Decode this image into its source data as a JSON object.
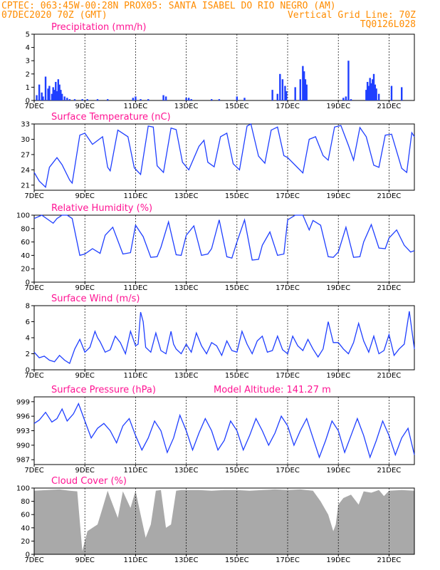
{
  "header": {
    "line1_left": "CPTEC:   063:45W-00:28N   PROX05: SANTA ISABEL DO RIO NEGRO (AM)",
    "line2_left": "07DEC2020 70Z (GMT)",
    "line2_right": "Vertical Grid Line: 70Z",
    "line3_right": "TQ0126L028"
  },
  "x_axis": {
    "start_day": 7,
    "end_day": 22,
    "ticks": [
      "7DEC",
      "9DEC",
      "11DEC",
      "13DEC",
      "15DEC",
      "17DEC",
      "19DEC",
      "21DEC"
    ]
  },
  "colors": {
    "line": "#1f3fff",
    "bar": "#1f3fff",
    "cloud": "#a9a9a9",
    "title": "#ff1493",
    "header": "#ff8c00"
  },
  "chart_data": [
    {
      "id": "precip",
      "type": "bar",
      "title": "Precipitation (mm/h)",
      "ylim": [
        0,
        5
      ],
      "yticks": [
        0,
        1,
        2,
        3,
        4,
        5
      ],
      "grid": true,
      "x": [
        7.1,
        7.2,
        7.3,
        7.35,
        7.45,
        7.55,
        7.6,
        7.7,
        7.75,
        7.8,
        7.85,
        7.9,
        7.95,
        8.0,
        8.05,
        8.1,
        8.2,
        8.3,
        8.4,
        8.6,
        8.9,
        9.1,
        9.5,
        9.9,
        10.9,
        11.0,
        11.2,
        11.5,
        12.1,
        12.2,
        13.0,
        13.1,
        13.2,
        14.0,
        14.3,
        15.0,
        15.3,
        16.4,
        16.6,
        16.7,
        16.8,
        16.9,
        16.95,
        17.3,
        17.5,
        17.6,
        17.65,
        17.7,
        17.75,
        19.2,
        19.3,
        19.4,
        19.5,
        20.1,
        20.15,
        20.2,
        20.25,
        20.3,
        20.35,
        20.4,
        20.45,
        20.5,
        20.6,
        21.1,
        21.5
      ],
      "values": [
        0.4,
        1.2,
        0.6,
        0.3,
        1.8,
        0.9,
        1.1,
        0.5,
        1.0,
        0.8,
        1.4,
        0.7,
        1.6,
        1.2,
        0.8,
        0.5,
        0.3,
        0.2,
        0.1,
        0.1,
        0.1,
        0.1,
        0.1,
        0.1,
        0.2,
        0.3,
        0.1,
        0.1,
        0.4,
        0.3,
        0.2,
        0.2,
        0.1,
        0.1,
        0.1,
        0.3,
        0.2,
        0.8,
        0.5,
        2.0,
        1.6,
        1.1,
        0.7,
        1.0,
        1.6,
        2.6,
        2.2,
        1.6,
        1.2,
        0.2,
        0.3,
        3.0,
        0.1,
        0.8,
        1.4,
        1.1,
        1.7,
        1.3,
        1.6,
        2.0,
        1.2,
        0.9,
        0.5,
        1.1,
        1.0
      ]
    },
    {
      "id": "temp",
      "type": "line",
      "title": "Surface Temperature (nC)",
      "ylim": [
        20,
        33
      ],
      "yticks": [
        21,
        24,
        27,
        30,
        33
      ],
      "x": [
        7.0,
        7.2,
        7.45,
        7.6,
        7.9,
        8.1,
        8.4,
        8.5,
        8.8,
        9.0,
        9.3,
        9.7,
        9.9,
        10.0,
        10.3,
        10.7,
        10.95,
        11.2,
        11.5,
        11.7,
        11.85,
        12.1,
        12.4,
        12.6,
        12.85,
        13.1,
        13.5,
        13.7,
        13.85,
        14.1,
        14.35,
        14.6,
        14.85,
        15.1,
        15.4,
        15.55,
        15.85,
        16.1,
        16.35,
        16.6,
        16.85,
        17.0,
        17.4,
        17.6,
        17.85,
        18.1,
        18.4,
        18.6,
        18.85,
        19.1,
        19.4,
        19.6,
        19.85,
        20.1,
        20.4,
        20.6,
        20.85,
        21.1,
        21.5,
        21.7,
        21.9,
        22.0
      ],
      "values": [
        23.5,
        21.8,
        20.6,
        24.5,
        26.4,
        25.0,
        22.0,
        21.4,
        30.8,
        31.2,
        29.0,
        30.5,
        24.5,
        23.8,
        31.8,
        30.5,
        24.4,
        23.1,
        32.6,
        32.4,
        24.8,
        23.5,
        32.2,
        31.9,
        25.5,
        24.0,
        28.6,
        29.8,
        25.5,
        24.6,
        30.5,
        31.2,
        25.2,
        24.0,
        32.6,
        33.0,
        26.7,
        25.3,
        31.8,
        32.4,
        26.8,
        26.4,
        24.4,
        23.4,
        30.0,
        30.5,
        26.8,
        25.9,
        32.4,
        32.7,
        28.8,
        25.9,
        32.3,
        30.5,
        24.9,
        24.5,
        30.8,
        31.0,
        24.3,
        23.5,
        31.3,
        30.5
      ]
    },
    {
      "id": "rh",
      "type": "line",
      "title": "Relative Humidity (%)",
      "ylim": [
        0,
        100
      ],
      "yticks": [
        0,
        20,
        40,
        60,
        80,
        100
      ],
      "x": [
        7.0,
        7.3,
        7.6,
        7.75,
        7.9,
        8.1,
        8.3,
        8.5,
        8.8,
        9.0,
        9.3,
        9.6,
        9.8,
        10.1,
        10.5,
        10.8,
        11.0,
        11.3,
        11.6,
        11.85,
        12.0,
        12.3,
        12.6,
        12.8,
        13.0,
        13.3,
        13.6,
        13.85,
        14.0,
        14.3,
        14.6,
        14.8,
        15.0,
        15.3,
        15.6,
        15.85,
        16.0,
        16.3,
        16.6,
        16.85,
        17.0,
        17.3,
        17.6,
        17.85,
        18.0,
        18.3,
        18.6,
        18.8,
        19.0,
        19.3,
        19.6,
        19.85,
        20.0,
        20.3,
        20.6,
        20.85,
        21.0,
        21.3,
        21.6,
        21.85,
        22.0
      ],
      "values": [
        95,
        100,
        92,
        88,
        95,
        100,
        100,
        95,
        40,
        42,
        50,
        43,
        70,
        82,
        42,
        44,
        85,
        68,
        37,
        38,
        52,
        90,
        41,
        40,
        70,
        84,
        40,
        42,
        50,
        93,
        38,
        36,
        60,
        93,
        33,
        34,
        55,
        75,
        40,
        42,
        93,
        100,
        100,
        78,
        92,
        85,
        38,
        37,
        45,
        82,
        37,
        38,
        60,
        86,
        51,
        50,
        66,
        78,
        55,
        45,
        47
      ]
    },
    {
      "id": "wind",
      "type": "line",
      "title": "Surface Wind (m/s)",
      "ylim": [
        0,
        8
      ],
      "yticks": [
        0,
        2,
        4,
        6,
        8
      ],
      "x": [
        7.0,
        7.2,
        7.4,
        7.6,
        7.8,
        8.0,
        8.2,
        8.4,
        8.6,
        8.8,
        9.0,
        9.2,
        9.4,
        9.5,
        9.6,
        9.8,
        10.0,
        10.2,
        10.4,
        10.6,
        10.8,
        11.0,
        11.1,
        11.2,
        11.3,
        11.4,
        11.6,
        11.8,
        12.0,
        12.2,
        12.4,
        12.5,
        12.6,
        12.8,
        13.0,
        13.2,
        13.4,
        13.6,
        13.8,
        14.0,
        14.2,
        14.4,
        14.6,
        14.8,
        15.0,
        15.2,
        15.4,
        15.6,
        15.8,
        16.0,
        16.2,
        16.4,
        16.6,
        16.8,
        17.0,
        17.2,
        17.4,
        17.6,
        17.8,
        18.0,
        18.2,
        18.4,
        18.6,
        18.8,
        19.0,
        19.2,
        19.4,
        19.6,
        19.8,
        20.0,
        20.2,
        20.4,
        20.6,
        20.8,
        21.0,
        21.2,
        21.4,
        21.6,
        21.8,
        22.0
      ],
      "values": [
        2.2,
        1.5,
        1.7,
        1.2,
        1.0,
        1.8,
        1.2,
        0.8,
        2.6,
        3.8,
        2.2,
        2.8,
        4.8,
        4.0,
        3.5,
        2.2,
        2.5,
        4.2,
        3.4,
        2.0,
        4.8,
        3.0,
        3.2,
        7.2,
        6.0,
        2.8,
        2.2,
        4.6,
        2.4,
        2.0,
        4.8,
        3.2,
        2.6,
        2.0,
        3.2,
        2.2,
        4.6,
        3.0,
        2.0,
        3.4,
        3.0,
        1.8,
        3.6,
        2.4,
        2.2,
        4.8,
        3.2,
        2.0,
        3.6,
        4.2,
        2.2,
        2.4,
        4.2,
        2.5,
        2.0,
        4.2,
        3.0,
        2.4,
        3.8,
        2.6,
        1.6,
        2.6,
        6.0,
        3.4,
        3.4,
        2.6,
        2.0,
        3.4,
        5.8,
        3.6,
        2.2,
        4.2,
        2.0,
        2.4,
        4.4,
        1.8,
        2.6,
        3.2,
        7.3,
        2.6
      ]
    },
    {
      "id": "pressure",
      "type": "line",
      "title": "Surface Pressure (hPa)",
      "annotation": "Model Altitude: 141.27 m",
      "ylim": [
        986,
        1000
      ],
      "yticks": [
        987,
        990,
        993,
        996,
        999
      ],
      "x": [
        7.0,
        7.2,
        7.45,
        7.7,
        7.9,
        8.1,
        8.3,
        8.55,
        8.75,
        9.0,
        9.25,
        9.5,
        9.75,
        10.0,
        10.25,
        10.5,
        10.75,
        11.0,
        11.25,
        11.5,
        11.75,
        12.0,
        12.25,
        12.5,
        12.75,
        13.0,
        13.25,
        13.5,
        13.75,
        14.0,
        14.25,
        14.5,
        14.75,
        15.0,
        15.25,
        15.5,
        15.75,
        16.0,
        16.25,
        16.5,
        16.75,
        17.0,
        17.25,
        17.5,
        17.75,
        18.0,
        18.25,
        18.5,
        18.75,
        19.0,
        19.25,
        19.5,
        19.75,
        20.0,
        20.25,
        20.5,
        20.75,
        21.0,
        21.25,
        21.5,
        21.75,
        22.0
      ],
      "values": [
        994.5,
        995.2,
        996.8,
        994.8,
        995.5,
        997.5,
        995.0,
        996.5,
        998.6,
        995.0,
        991.5,
        993.5,
        994.5,
        993.0,
        990.5,
        994.0,
        995.5,
        992.0,
        989.0,
        991.5,
        995.0,
        993.0,
        988.5,
        991.5,
        996.2,
        993.0,
        989.0,
        992.5,
        995.5,
        993.0,
        989.0,
        991.0,
        995.0,
        993.0,
        989.0,
        992.0,
        995.5,
        993.0,
        990.0,
        992.5,
        996.0,
        994.0,
        990.0,
        993.0,
        995.5,
        991.5,
        987.5,
        991.0,
        995.0,
        993.0,
        988.5,
        992.0,
        995.5,
        992.0,
        987.5,
        991.0,
        995.0,
        992.0,
        988.0,
        991.5,
        993.5,
        988.0
      ]
    },
    {
      "id": "cloud",
      "type": "area",
      "title": "Cloud Cover (%)",
      "ylim": [
        0,
        100
      ],
      "yticks": [
        0,
        20,
        40,
        60,
        80,
        100
      ],
      "x": [
        7.0,
        7.5,
        8.0,
        8.4,
        8.7,
        8.9,
        9.1,
        9.3,
        9.5,
        9.7,
        9.9,
        10.0,
        10.3,
        10.5,
        10.8,
        11.0,
        11.2,
        11.4,
        11.6,
        11.8,
        12.0,
        12.2,
        12.4,
        12.6,
        12.8,
        13.0,
        13.5,
        14.0,
        14.5,
        15.0,
        15.5,
        16.0,
        16.5,
        17.0,
        17.5,
        18.0,
        18.3,
        18.6,
        18.8,
        18.9,
        19.0,
        19.2,
        19.5,
        19.8,
        20.0,
        20.3,
        20.6,
        20.8,
        21.0,
        21.5,
        22.0
      ],
      "values": [
        96,
        97,
        98,
        96,
        95,
        5,
        35,
        40,
        45,
        70,
        96,
        85,
        55,
        95,
        70,
        96,
        60,
        25,
        45,
        96,
        97,
        40,
        45,
        96,
        97,
        97,
        97,
        96,
        97,
        97,
        96,
        97,
        98,
        97,
        98,
        96,
        80,
        60,
        35,
        45,
        75,
        85,
        90,
        75,
        95,
        93,
        97,
        88,
        96,
        97,
        96
      ]
    }
  ]
}
